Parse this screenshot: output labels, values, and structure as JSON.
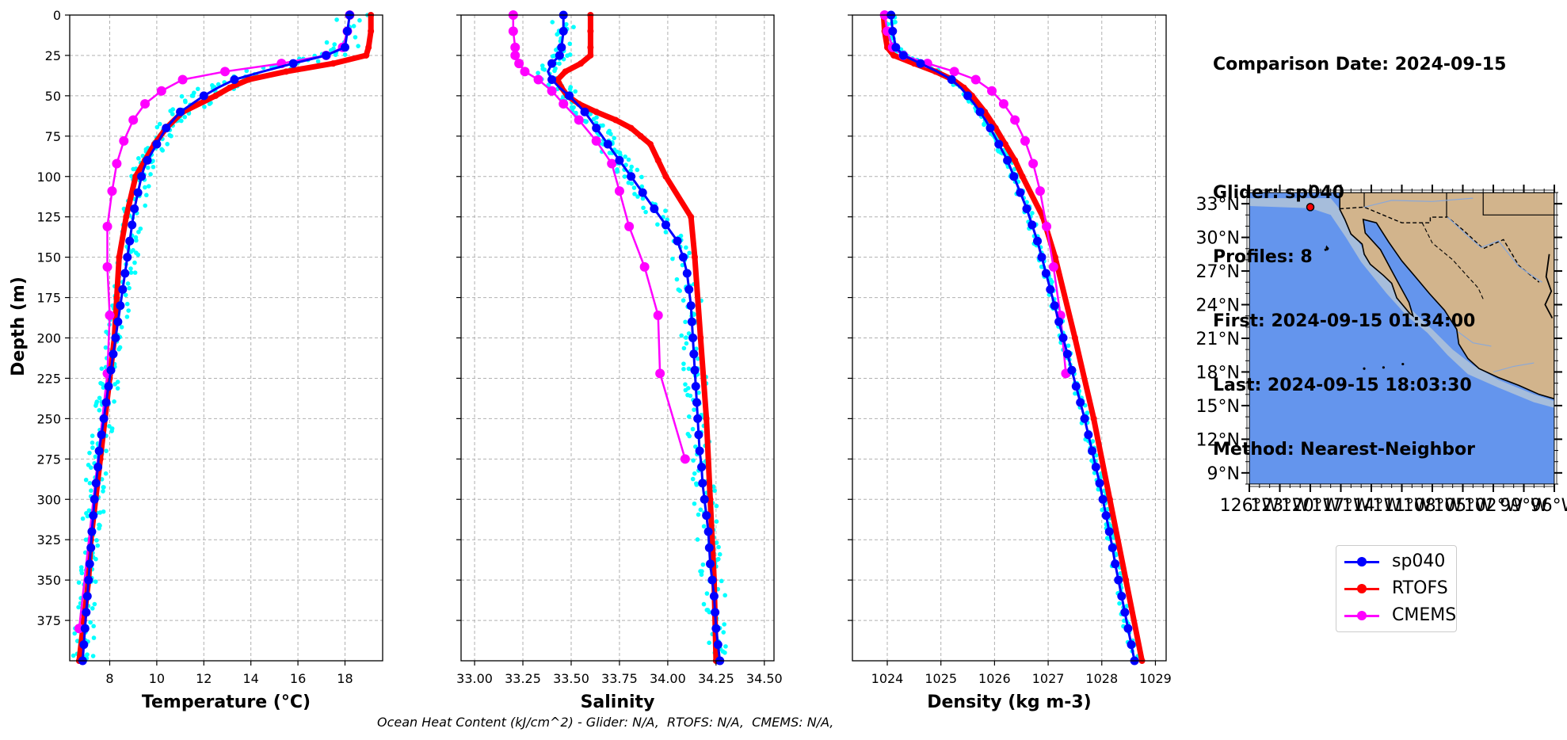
{
  "header": {
    "line1": "Comparison Date: 2024-09-15",
    "line2": "",
    "line3": "Glider: sp040",
    "line4": "Profiles: 8",
    "line5": "First: 2024-09-15 01:34:00",
    "line6": "Last: 2024-09-15 18:03:30",
    "line7": "Method: Nearest-Neighbor"
  },
  "footer": "Ocean Heat Content (kJ/cm^2) - Glider: N/A,  RTOFS: N/A,  CMEMS: N/A,",
  "legend": [
    {
      "name": "sp040",
      "color": "#0000ff"
    },
    {
      "name": "RTOFS",
      "color": "#ff0000"
    },
    {
      "name": "CMEMS",
      "color": "#ff00ff"
    }
  ],
  "colors": {
    "glider": "#0000ff",
    "rtofs": "#ff0000",
    "cmems": "#ff00ff",
    "raw": "#00ffff",
    "ocean": "#6495ed",
    "shelf": "#a6bddb",
    "land": "#d2b48c"
  },
  "chart_data": [
    {
      "type": "line",
      "xlabel": "Temperature (°C)",
      "ylabel": "Depth (m)",
      "xlim": [
        6.3,
        19.6
      ],
      "ylim": [
        400,
        0
      ],
      "xticks": [
        8,
        10,
        12,
        14,
        16,
        18
      ],
      "yticks": [
        0,
        25,
        50,
        75,
        100,
        125,
        150,
        175,
        200,
        225,
        250,
        275,
        300,
        325,
        350,
        375
      ],
      "grid": true,
      "series": [
        {
          "name": "sp040",
          "color": "#0000ff",
          "depth": [
            0,
            10,
            20,
            25,
            30,
            35,
            40,
            45,
            50,
            55,
            60,
            65,
            70,
            75,
            80,
            85,
            90,
            95,
            100,
            110,
            120,
            130,
            140,
            150,
            160,
            170,
            180,
            190,
            200,
            210,
            220,
            230,
            240,
            250,
            260,
            270,
            280,
            290,
            300,
            310,
            320,
            330,
            340,
            350,
            360,
            370,
            380,
            390,
            400
          ],
          "values": [
            18.2,
            18.1,
            18.0,
            17.2,
            15.8,
            14.5,
            13.3,
            12.6,
            12.0,
            11.5,
            11.0,
            10.7,
            10.4,
            10.2,
            10.0,
            9.8,
            9.6,
            9.45,
            9.35,
            9.2,
            9.05,
            8.95,
            8.85,
            8.75,
            8.65,
            8.55,
            8.45,
            8.35,
            8.25,
            8.15,
            8.05,
            7.95,
            7.85,
            7.75,
            7.65,
            7.55,
            7.5,
            7.42,
            7.35,
            7.3,
            7.24,
            7.2,
            7.15,
            7.1,
            7.05,
            7.0,
            6.95,
            6.9,
            6.85
          ]
        },
        {
          "name": "RTOFS",
          "color": "#ff0000",
          "depth": [
            0,
            10,
            20,
            25,
            30,
            35,
            40,
            45,
            50,
            60,
            70,
            80,
            90,
            100,
            125,
            150,
            175,
            200,
            225,
            250,
            275,
            300,
            325,
            350,
            375,
            400
          ],
          "values": [
            19.1,
            19.1,
            19.0,
            18.9,
            17.5,
            15.5,
            13.9,
            13.1,
            12.5,
            11.1,
            10.4,
            9.9,
            9.5,
            9.1,
            8.7,
            8.4,
            8.3,
            8.2,
            8.0,
            7.8,
            7.6,
            7.4,
            7.2,
            7.1,
            6.9,
            6.7
          ]
        },
        {
          "name": "CMEMS",
          "color": "#ff00ff",
          "depth": [
            0,
            10,
            20,
            25,
            30,
            35,
            40,
            47,
            55,
            65,
            78,
            92,
            109,
            131,
            156,
            186,
            222,
            380
          ],
          "values": [
            18.2,
            18.1,
            17.9,
            17.2,
            15.3,
            12.9,
            11.1,
            10.2,
            9.5,
            9.0,
            8.6,
            8.3,
            8.1,
            7.9,
            7.9,
            8.0,
            7.9,
            6.7
          ]
        }
      ]
    },
    {
      "type": "line",
      "xlabel": "Salinity",
      "xlim": [
        32.93,
        34.55
      ],
      "ylim": [
        400,
        0
      ],
      "xticks": [
        33.0,
        33.25,
        33.5,
        33.75,
        34.0,
        34.25,
        34.5
      ],
      "grid": true,
      "series": [
        {
          "name": "sp040",
          "color": "#0000ff",
          "depth": [
            0,
            10,
            20,
            25,
            30,
            35,
            40,
            45,
            50,
            55,
            60,
            65,
            70,
            75,
            80,
            85,
            90,
            95,
            100,
            110,
            120,
            130,
            140,
            150,
            160,
            170,
            180,
            190,
            200,
            210,
            220,
            230,
            240,
            250,
            260,
            270,
            280,
            290,
            300,
            310,
            320,
            330,
            340,
            350,
            360,
            370,
            380,
            390,
            400
          ],
          "values": [
            33.46,
            33.46,
            33.45,
            33.44,
            33.4,
            33.38,
            33.4,
            33.44,
            33.49,
            33.53,
            33.57,
            33.6,
            33.63,
            33.66,
            33.69,
            33.72,
            33.75,
            33.78,
            33.81,
            33.87,
            33.93,
            33.99,
            34.05,
            34.08,
            34.1,
            34.11,
            34.12,
            34.125,
            34.13,
            34.135,
            34.14,
            34.145,
            34.15,
            34.155,
            34.16,
            34.165,
            34.175,
            34.18,
            34.19,
            34.2,
            34.21,
            34.215,
            34.22,
            34.23,
            34.24,
            34.245,
            34.25,
            34.26,
            34.27
          ]
        },
        {
          "name": "RTOFS",
          "color": "#ff0000",
          "depth": [
            0,
            10,
            20,
            25,
            30,
            35,
            40,
            45,
            50,
            55,
            60,
            65,
            70,
            75,
            80,
            90,
            100,
            125,
            150,
            200,
            250,
            300,
            350,
            400
          ],
          "values": [
            33.6,
            33.6,
            33.6,
            33.6,
            33.55,
            33.47,
            33.43,
            33.45,
            33.48,
            33.54,
            33.63,
            33.73,
            33.81,
            33.86,
            33.91,
            33.95,
            33.99,
            34.12,
            34.14,
            34.17,
            34.2,
            34.22,
            34.24,
            34.25
          ]
        },
        {
          "name": "CMEMS",
          "color": "#ff00ff",
          "depth": [
            0,
            10,
            20,
            25,
            30,
            35,
            40,
            47,
            55,
            65,
            78,
            92,
            109,
            131,
            156,
            186,
            222,
            275
          ],
          "values": [
            33.2,
            33.2,
            33.21,
            33.21,
            33.23,
            33.26,
            33.33,
            33.4,
            33.46,
            33.54,
            33.63,
            33.71,
            33.75,
            33.8,
            33.88,
            33.95,
            33.96,
            34.09
          ]
        }
      ]
    },
    {
      "type": "line",
      "xlabel": "Density (kg m-3)",
      "xlim": [
        1023.35,
        1029.2
      ],
      "ylim": [
        400,
        0
      ],
      "xticks": [
        1024,
        1025,
        1026,
        1027,
        1028,
        1029
      ],
      "grid": true,
      "series": [
        {
          "name": "sp040",
          "color": "#0000ff",
          "depth": [
            0,
            10,
            20,
            25,
            30,
            35,
            40,
            45,
            50,
            55,
            60,
            65,
            70,
            75,
            80,
            85,
            90,
            95,
            100,
            110,
            120,
            130,
            140,
            150,
            160,
            170,
            180,
            190,
            200,
            210,
            220,
            230,
            240,
            250,
            260,
            270,
            280,
            290,
            300,
            310,
            320,
            330,
            340,
            350,
            360,
            370,
            380,
            390,
            400
          ],
          "values": [
            1024.07,
            1024.1,
            1024.16,
            1024.3,
            1024.62,
            1024.93,
            1025.2,
            1025.37,
            1025.5,
            1025.62,
            1025.73,
            1025.83,
            1025.92,
            1026.0,
            1026.08,
            1026.16,
            1026.24,
            1026.3,
            1026.36,
            1026.48,
            1026.6,
            1026.7,
            1026.8,
            1026.88,
            1026.96,
            1027.04,
            1027.12,
            1027.2,
            1027.28,
            1027.36,
            1027.44,
            1027.52,
            1027.6,
            1027.68,
            1027.75,
            1027.82,
            1027.89,
            1027.96,
            1028.02,
            1028.08,
            1028.14,
            1028.2,
            1028.25,
            1028.31,
            1028.37,
            1028.43,
            1028.49,
            1028.55,
            1028.61
          ]
        },
        {
          "name": "RTOFS",
          "color": "#ff0000",
          "depth": [
            0,
            10,
            20,
            25,
            30,
            35,
            40,
            45,
            50,
            60,
            70,
            80,
            90,
            100,
            125,
            150,
            200,
            250,
            300,
            350,
            400
          ],
          "values": [
            1023.93,
            1023.95,
            1024.0,
            1024.12,
            1024.5,
            1024.9,
            1025.22,
            1025.43,
            1025.58,
            1025.82,
            1026.02,
            1026.2,
            1026.38,
            1026.52,
            1026.9,
            1027.13,
            1027.5,
            1027.85,
            1028.15,
            1028.45,
            1028.75
          ]
        },
        {
          "name": "CMEMS",
          "color": "#ff00ff",
          "depth": [
            0,
            10,
            20,
            25,
            30,
            35,
            40,
            47,
            55,
            65,
            78,
            92,
            109,
            131,
            156,
            186,
            222
          ],
          "values": [
            1023.95,
            1024.0,
            1024.1,
            1024.3,
            1024.75,
            1025.25,
            1025.65,
            1025.95,
            1026.17,
            1026.38,
            1026.57,
            1026.72,
            1026.85,
            1026.97,
            1027.1,
            1027.23,
            1027.33
          ]
        }
      ]
    },
    {
      "type": "map",
      "lat_ticks": [
        "33°N",
        "30°N",
        "27°N",
        "24°N",
        "21°N",
        "18°N",
        "15°N",
        "12°N",
        "9°N"
      ],
      "lon_ticks": [
        "126°W",
        "123°W",
        "120°W",
        "117°W",
        "114°W",
        "111°W",
        "108°W",
        "105°W",
        "102°W",
        "99°W",
        "96°W"
      ],
      "lon_range": [
        -126,
        -96
      ],
      "lat_range": [
        8,
        34
      ],
      "glider_position": [
        -120.0,
        32.7
      ]
    }
  ]
}
